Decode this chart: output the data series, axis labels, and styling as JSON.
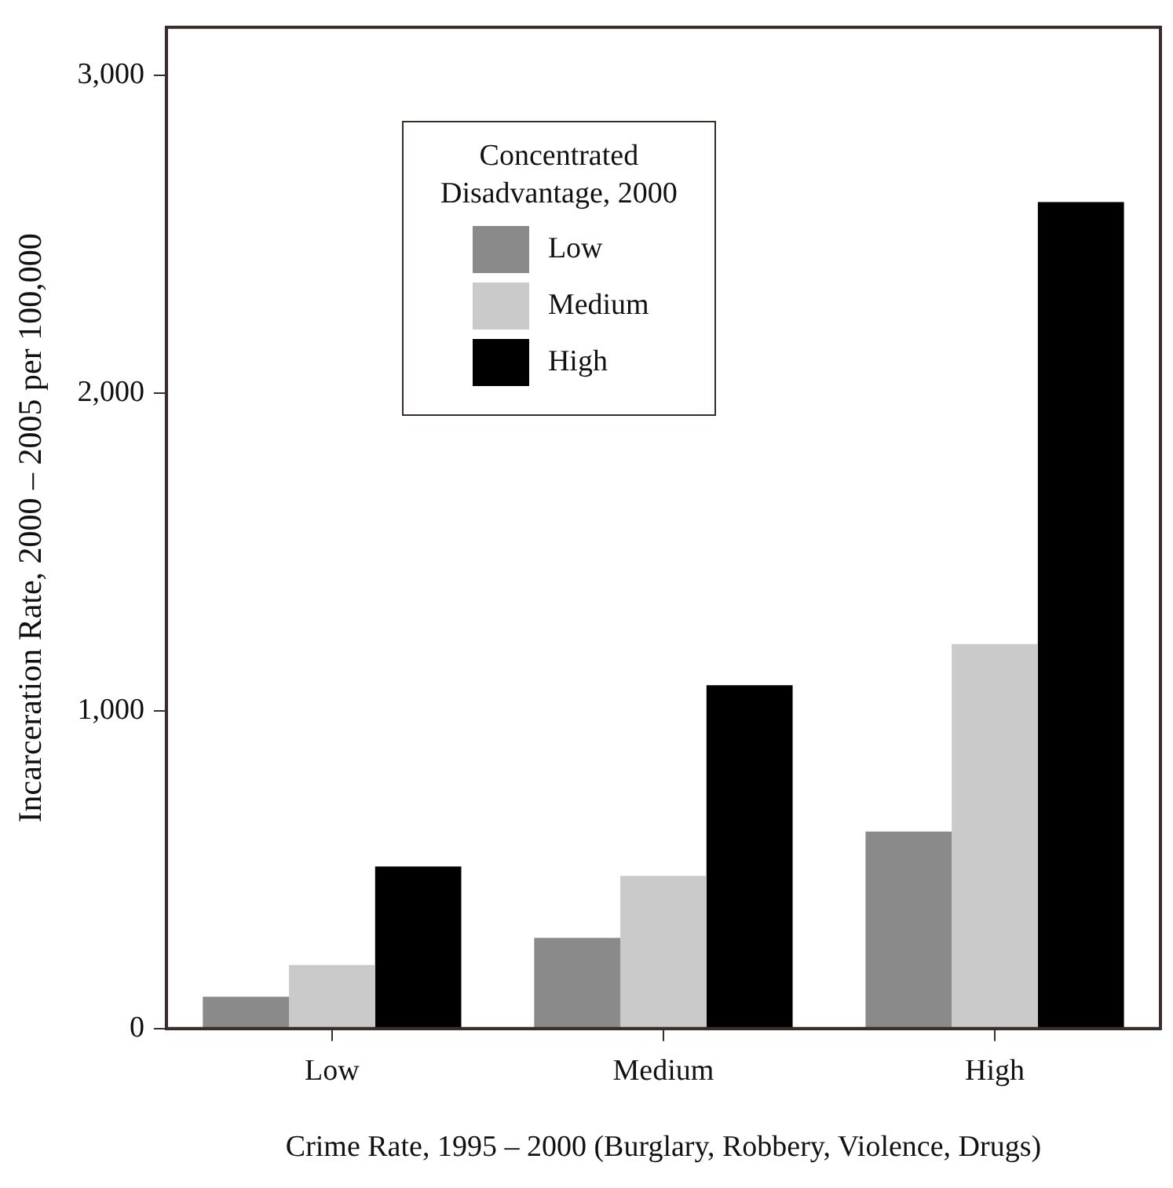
{
  "chart_data": {
    "type": "bar",
    "xlabel": "Crime Rate, 1995 – 2000 (Burglary, Robbery, Violence, Drugs)",
    "ylabel": "Incarceration Rate, 2000 – 2005 per 100,000",
    "legend_title": "Concentrated Disadvantage, 2000",
    "categories": [
      "Low",
      "Medium",
      "High"
    ],
    "series": [
      {
        "name": "Low",
        "color": "#8a8a8a",
        "values": [
          100,
          285,
          620
        ]
      },
      {
        "name": "Medium",
        "color": "#cacaca",
        "values": [
          200,
          480,
          1210
        ]
      },
      {
        "name": "High",
        "color": "#000000",
        "values": [
          510,
          1080,
          2600
        ]
      }
    ],
    "ylim": [
      0,
      3150
    ],
    "yticks": [
      0,
      {
        "value": 1000,
        "label": "1,000"
      },
      {
        "value": 2000,
        "label": "2,000"
      },
      {
        "value": 3000,
        "label": "3,000"
      }
    ],
    "grid": false,
    "legend": "top left"
  }
}
